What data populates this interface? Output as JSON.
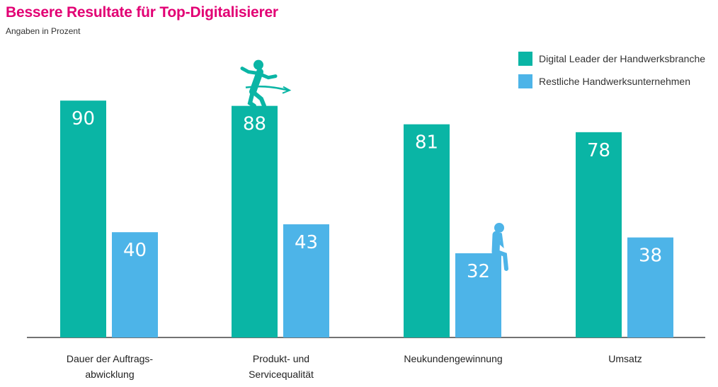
{
  "title": "Bessere Resultate für Top-Digitalisierer",
  "subtitle": "Angaben in Prozent",
  "colors": {
    "accent": "#e20074",
    "series1": "#0ab5a5",
    "series2": "#4db4e8"
  },
  "icons": [
    "runner-at-finish-line-icon",
    "thinking-sitting-person-icon"
  ],
  "chart_data": {
    "type": "bar",
    "categories": [
      [
        "Dauer der Auftrags-",
        "abwicklung"
      ],
      [
        "Produkt- und",
        "Servicequalität"
      ],
      [
        "Neukundengewinnung"
      ],
      [
        "Umsatz"
      ]
    ],
    "series": [
      {
        "name": "Digital Leader der Handwerksbranche",
        "values": [
          90,
          88,
          81,
          78
        ]
      },
      {
        "name": "Restliche Handwerksunternehmen",
        "values": [
          40,
          43,
          32,
          38
        ]
      }
    ],
    "ylim": [
      0,
      100
    ],
    "grid": false,
    "legend_position": "top-right"
  }
}
